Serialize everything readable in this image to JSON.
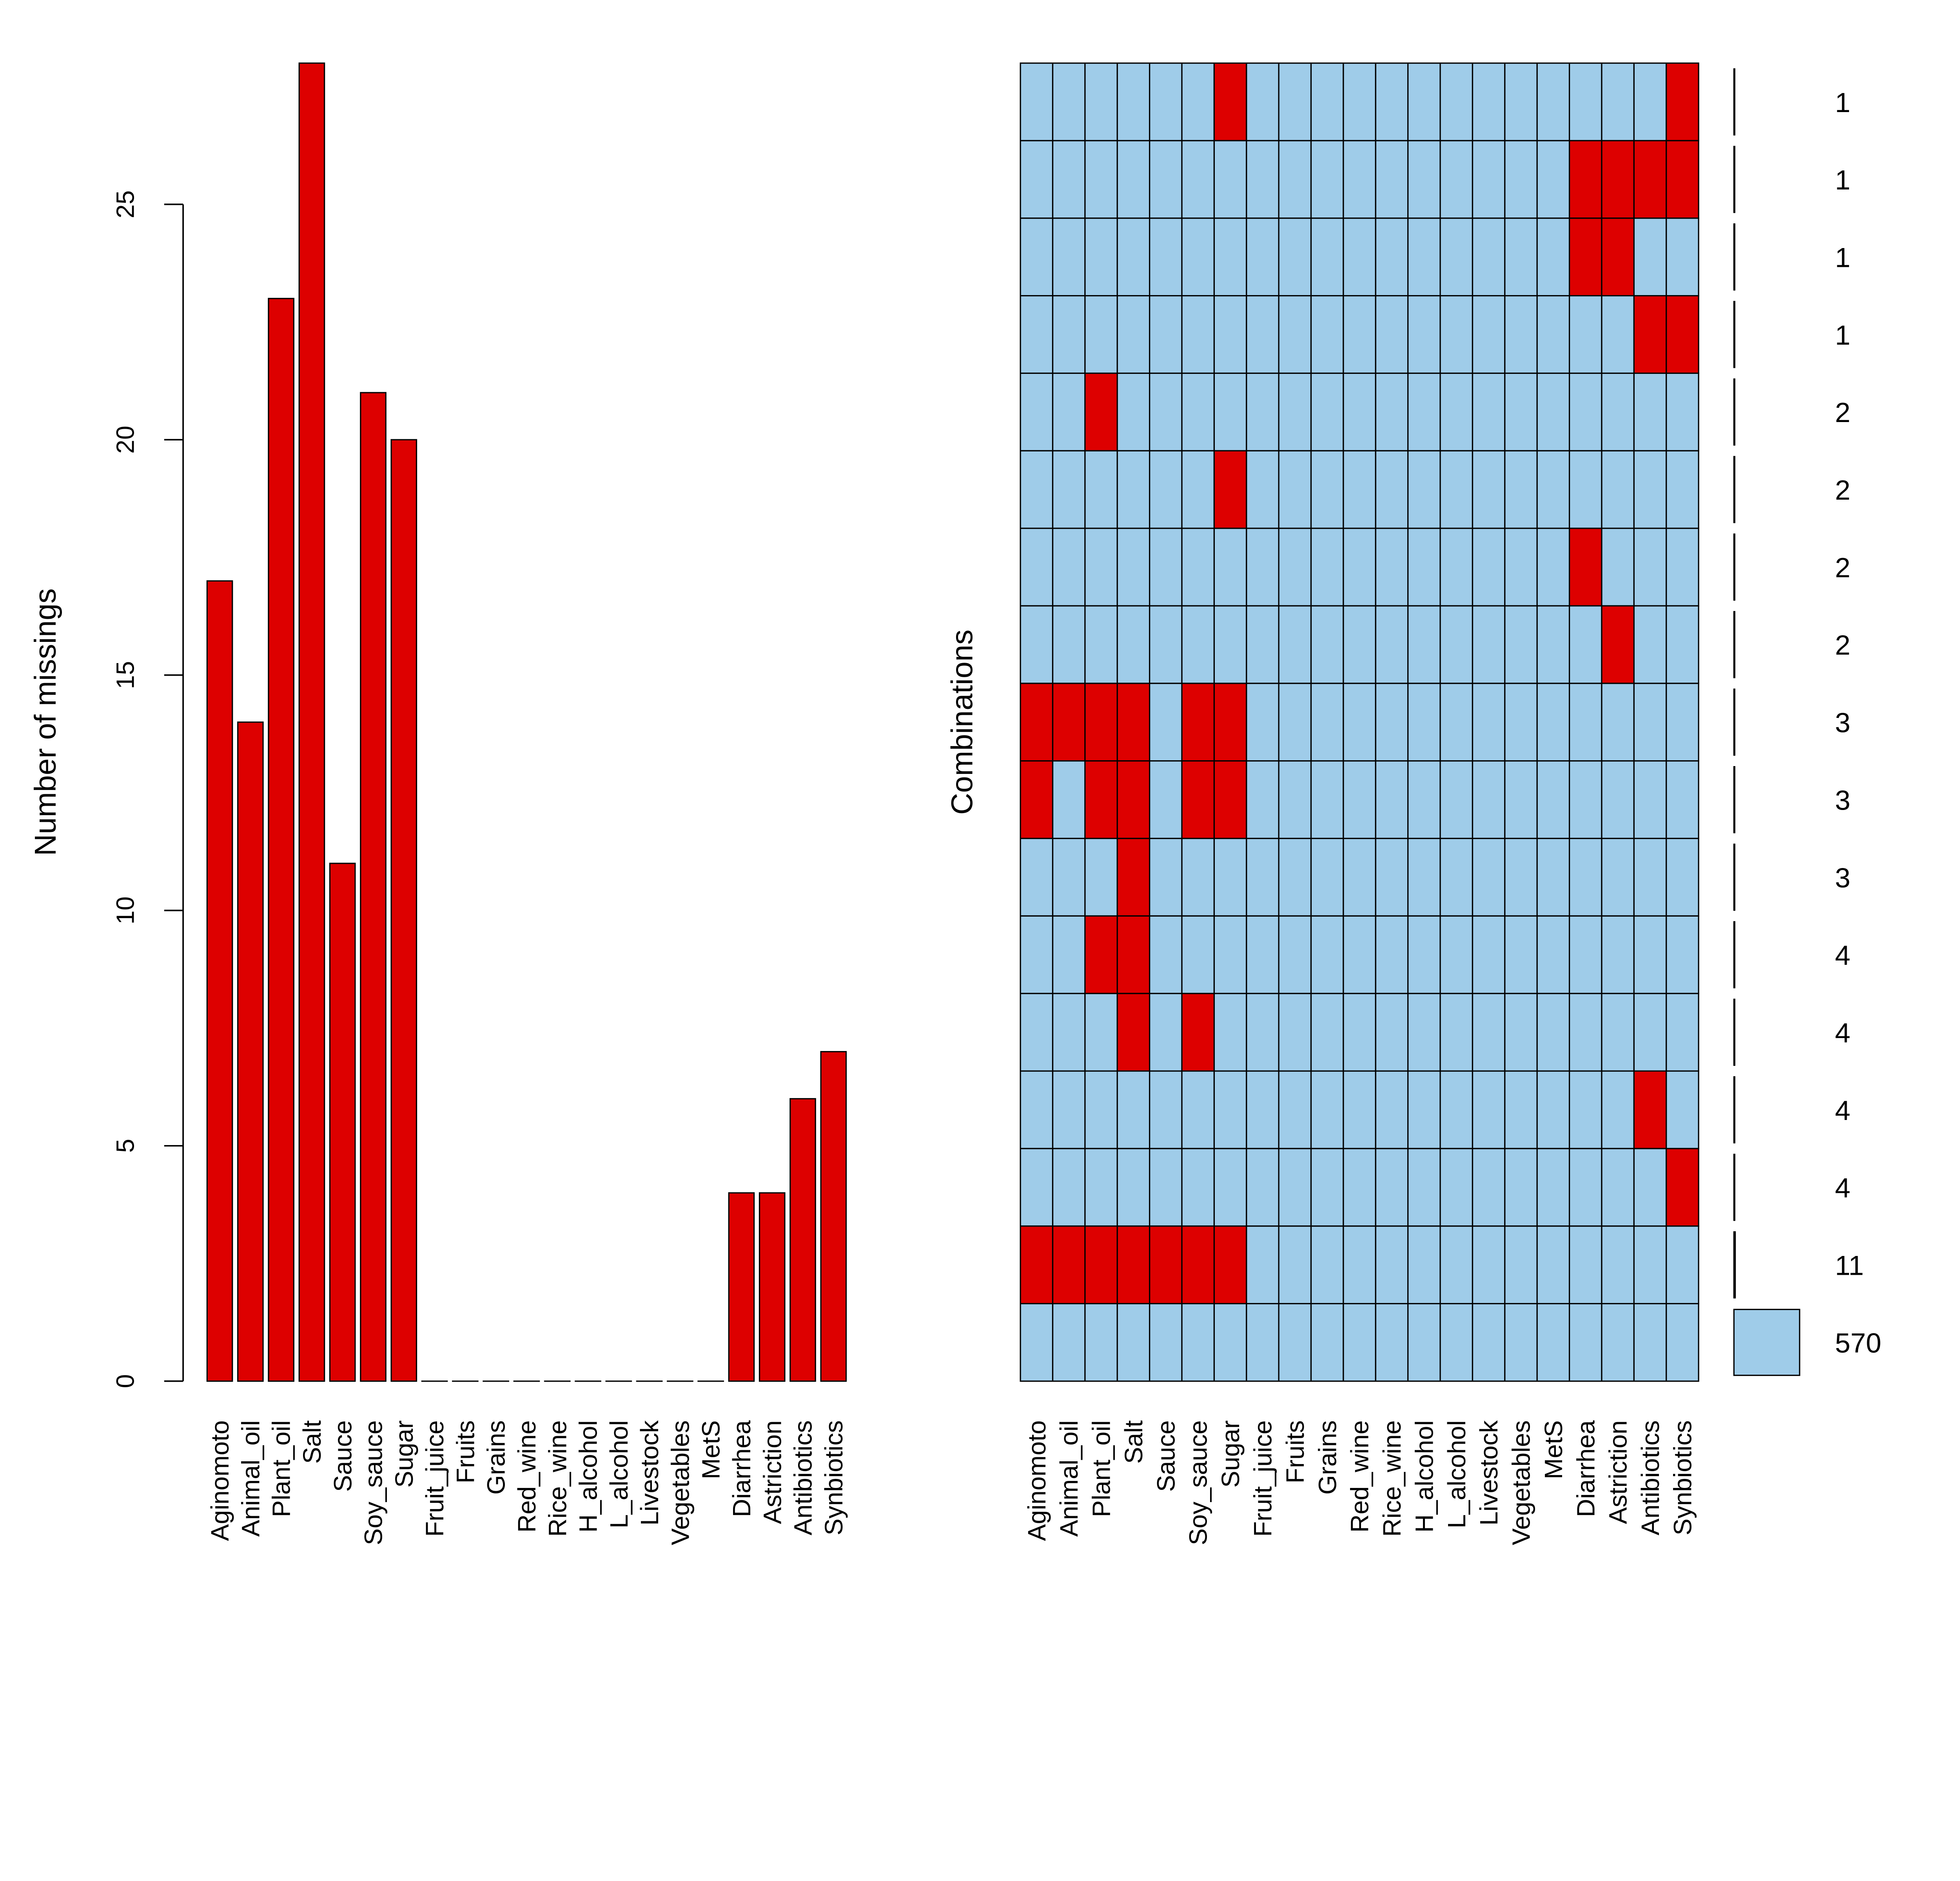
{
  "chart_data": [
    {
      "type": "bar",
      "ylabel": "Number of missings",
      "xlabel": "",
      "ylim": [
        0,
        28
      ],
      "yticks": [
        0,
        5,
        10,
        15,
        20,
        25
      ],
      "grid": false,
      "categories": [
        "Aginomoto",
        "Animal_oil",
        "Plant_oil",
        "Salt",
        "Sauce",
        "Soy_sauce",
        "Sugar",
        "Fruit_juice",
        "Fruits",
        "Grains",
        "Red_wine",
        "Rice_wine",
        "H_alcohol",
        "L_alcohol",
        "Livestock",
        "Vegetables",
        "MetS",
        "Diarrhea",
        "Astriction",
        "Antibiotics",
        "Synbiotics"
      ],
      "values": [
        17,
        14,
        23,
        28,
        11,
        21,
        20,
        0,
        0,
        0,
        0,
        0,
        0,
        0,
        0,
        0,
        0,
        4,
        4,
        6,
        7
      ],
      "colors": {
        "bar": "#DD0000"
      }
    },
    {
      "type": "heatmap",
      "ylabel": "Combinations",
      "categories": [
        "Aginomoto",
        "Animal_oil",
        "Plant_oil",
        "Salt",
        "Sauce",
        "Soy_sauce",
        "Sugar",
        "Fruit_juice",
        "Fruits",
        "Grains",
        "Red_wine",
        "Rice_wine",
        "H_alcohol",
        "L_alcohol",
        "Livestock",
        "Vegetables",
        "MetS",
        "Diarrhea",
        "Astriction",
        "Antibiotics",
        "Synbiotics"
      ],
      "combinations": [
        {
          "missing": [
            "Sugar",
            "Synbiotics"
          ],
          "count": 1
        },
        {
          "missing": [
            "Diarrhea",
            "Astriction",
            "Antibiotics",
            "Synbiotics"
          ],
          "count": 1
        },
        {
          "missing": [
            "Diarrhea",
            "Astriction"
          ],
          "count": 1
        },
        {
          "missing": [
            "Antibiotics",
            "Synbiotics"
          ],
          "count": 1
        },
        {
          "missing": [
            "Plant_oil"
          ],
          "count": 2
        },
        {
          "missing": [
            "Sugar"
          ],
          "count": 2
        },
        {
          "missing": [
            "Diarrhea"
          ],
          "count": 2
        },
        {
          "missing": [
            "Astriction"
          ],
          "count": 2
        },
        {
          "missing": [
            "Aginomoto",
            "Animal_oil",
            "Plant_oil",
            "Salt",
            "Soy_sauce",
            "Sugar"
          ],
          "count": 3
        },
        {
          "missing": [
            "Aginomoto",
            "Plant_oil",
            "Salt",
            "Soy_sauce",
            "Sugar"
          ],
          "count": 3
        },
        {
          "missing": [
            "Salt"
          ],
          "count": 3
        },
        {
          "missing": [
            "Plant_oil",
            "Salt"
          ],
          "count": 4
        },
        {
          "missing": [
            "Salt",
            "Soy_sauce"
          ],
          "count": 4
        },
        {
          "missing": [
            "Antibiotics"
          ],
          "count": 4
        },
        {
          "missing": [
            "Synbiotics"
          ],
          "count": 4
        },
        {
          "missing": [
            "Aginomoto",
            "Animal_oil",
            "Plant_oil",
            "Salt",
            "Sauce",
            "Soy_sauce",
            "Sugar"
          ],
          "count": 11
        },
        {
          "missing": [],
          "count": 570
        }
      ],
      "colors": {
        "missing": "#DD0000",
        "observed": "#9FCCE9"
      }
    }
  ]
}
